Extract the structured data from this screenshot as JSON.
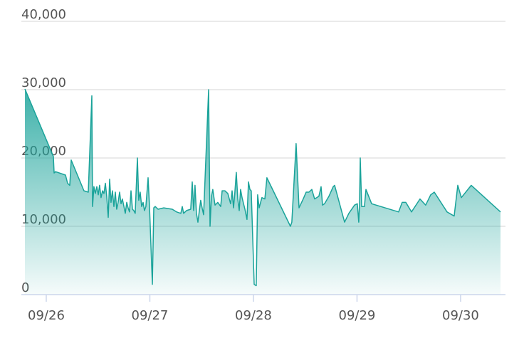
{
  "chart_data": {
    "type": "area",
    "x": [
      25.794,
      26.069,
      26.076,
      26.089,
      26.186,
      26.206,
      26.227,
      26.241,
      26.364,
      26.406,
      26.44,
      26.447,
      26.46,
      26.474,
      26.488,
      26.502,
      26.515,
      26.529,
      26.543,
      26.557,
      26.571,
      26.584,
      26.598,
      26.612,
      26.625,
      26.639,
      26.653,
      26.667,
      26.68,
      26.694,
      26.708,
      26.722,
      26.735,
      26.763,
      26.777,
      26.79,
      26.804,
      26.818,
      26.832,
      26.845,
      26.859,
      26.88,
      26.893,
      26.907,
      26.921,
      26.935,
      26.948,
      26.962,
      26.983,
      26.997,
      27.024,
      27.038,
      27.052,
      27.079,
      27.134,
      27.216,
      27.258,
      27.299,
      27.313,
      27.326,
      27.354,
      27.395,
      27.409,
      27.423,
      27.436,
      27.45,
      27.464,
      27.478,
      27.491,
      27.505,
      27.519,
      27.567,
      27.581,
      27.595,
      27.608,
      27.629,
      27.656,
      27.684,
      27.698,
      27.725,
      27.753,
      27.78,
      27.794,
      27.808,
      27.821,
      27.835,
      27.849,
      27.863,
      27.876,
      27.89,
      27.918,
      27.938,
      27.952,
      27.966,
      27.979,
      28.007,
      28.027,
      28.041,
      28.055,
      28.069,
      28.082,
      28.11,
      28.13,
      28.357,
      28.371,
      28.412,
      28.44,
      28.481,
      28.509,
      28.536,
      28.564,
      28.591,
      28.632,
      28.653,
      28.667,
      28.687,
      28.729,
      28.77,
      28.784,
      28.88,
      28.921,
      28.976,
      29.003,
      29.017,
      29.024,
      29.031,
      29.045,
      29.072,
      29.086,
      29.141,
      29.402,
      29.436,
      29.471,
      29.526,
      29.608,
      29.663,
      29.711,
      29.746,
      29.869,
      29.938,
      29.973,
      30.007,
      30.103,
      30.385
    ],
    "values": [
      30100,
      20200,
      17800,
      18000,
      17500,
      16300,
      16000,
      19700,
      15200,
      15000,
      29100,
      12900,
      15800,
      14800,
      15800,
      14600,
      16000,
      14200,
      15200,
      14800,
      16300,
      14400,
      11300,
      16900,
      13500,
      15200,
      12900,
      15000,
      12500,
      13500,
      15000,
      13300,
      14000,
      11900,
      13500,
      12700,
      12100,
      15200,
      12500,
      12300,
      11900,
      20000,
      13800,
      15000,
      12900,
      13500,
      12300,
      12900,
      17100,
      12900,
      1500,
      12700,
      12900,
      12500,
      12700,
      12500,
      12100,
      11900,
      12900,
      11900,
      12300,
      12500,
      16500,
      12300,
      16000,
      11900,
      10600,
      12300,
      13800,
      12700,
      11700,
      30000,
      10000,
      14400,
      15400,
      13100,
      13500,
      12900,
      15200,
      15200,
      14800,
      13300,
      15200,
      12700,
      15000,
      17900,
      14000,
      12300,
      15400,
      14200,
      12500,
      11000,
      16500,
      15400,
      15200,
      1500,
      1300,
      14600,
      12700,
      13500,
      14200,
      14000,
      17100,
      10000,
      10600,
      22100,
      12700,
      14000,
      15000,
      15000,
      15400,
      14000,
      14400,
      15800,
      13100,
      13300,
      14400,
      15800,
      16000,
      10600,
      11900,
      13100,
      13300,
      10600,
      12900,
      20000,
      12900,
      12900,
      15400,
      13300,
      12100,
      13500,
      13500,
      12100,
      14000,
      13100,
      14600,
      15000,
      12100,
      11500,
      16000,
      14200,
      16000,
      12100
    ],
    "color": "#1aa39a",
    "xlim": [
      25.794,
      30.43
    ],
    "xticks": [
      {
        "value": 26,
        "label": "09/26"
      },
      {
        "value": 27,
        "label": "09/27"
      },
      {
        "value": 28,
        "label": "09/28"
      },
      {
        "value": 29,
        "label": "09/29"
      },
      {
        "value": 30,
        "label": "09/30"
      }
    ],
    "ylim": [
      0,
      40000
    ],
    "yticks": [
      {
        "value": 0,
        "label": "0"
      },
      {
        "value": 10000,
        "label": "10,000"
      },
      {
        "value": 20000,
        "label": "20,000"
      },
      {
        "value": 30000,
        "label": "30,000"
      },
      {
        "value": 40000,
        "label": "40,000"
      }
    ],
    "grid": true
  }
}
